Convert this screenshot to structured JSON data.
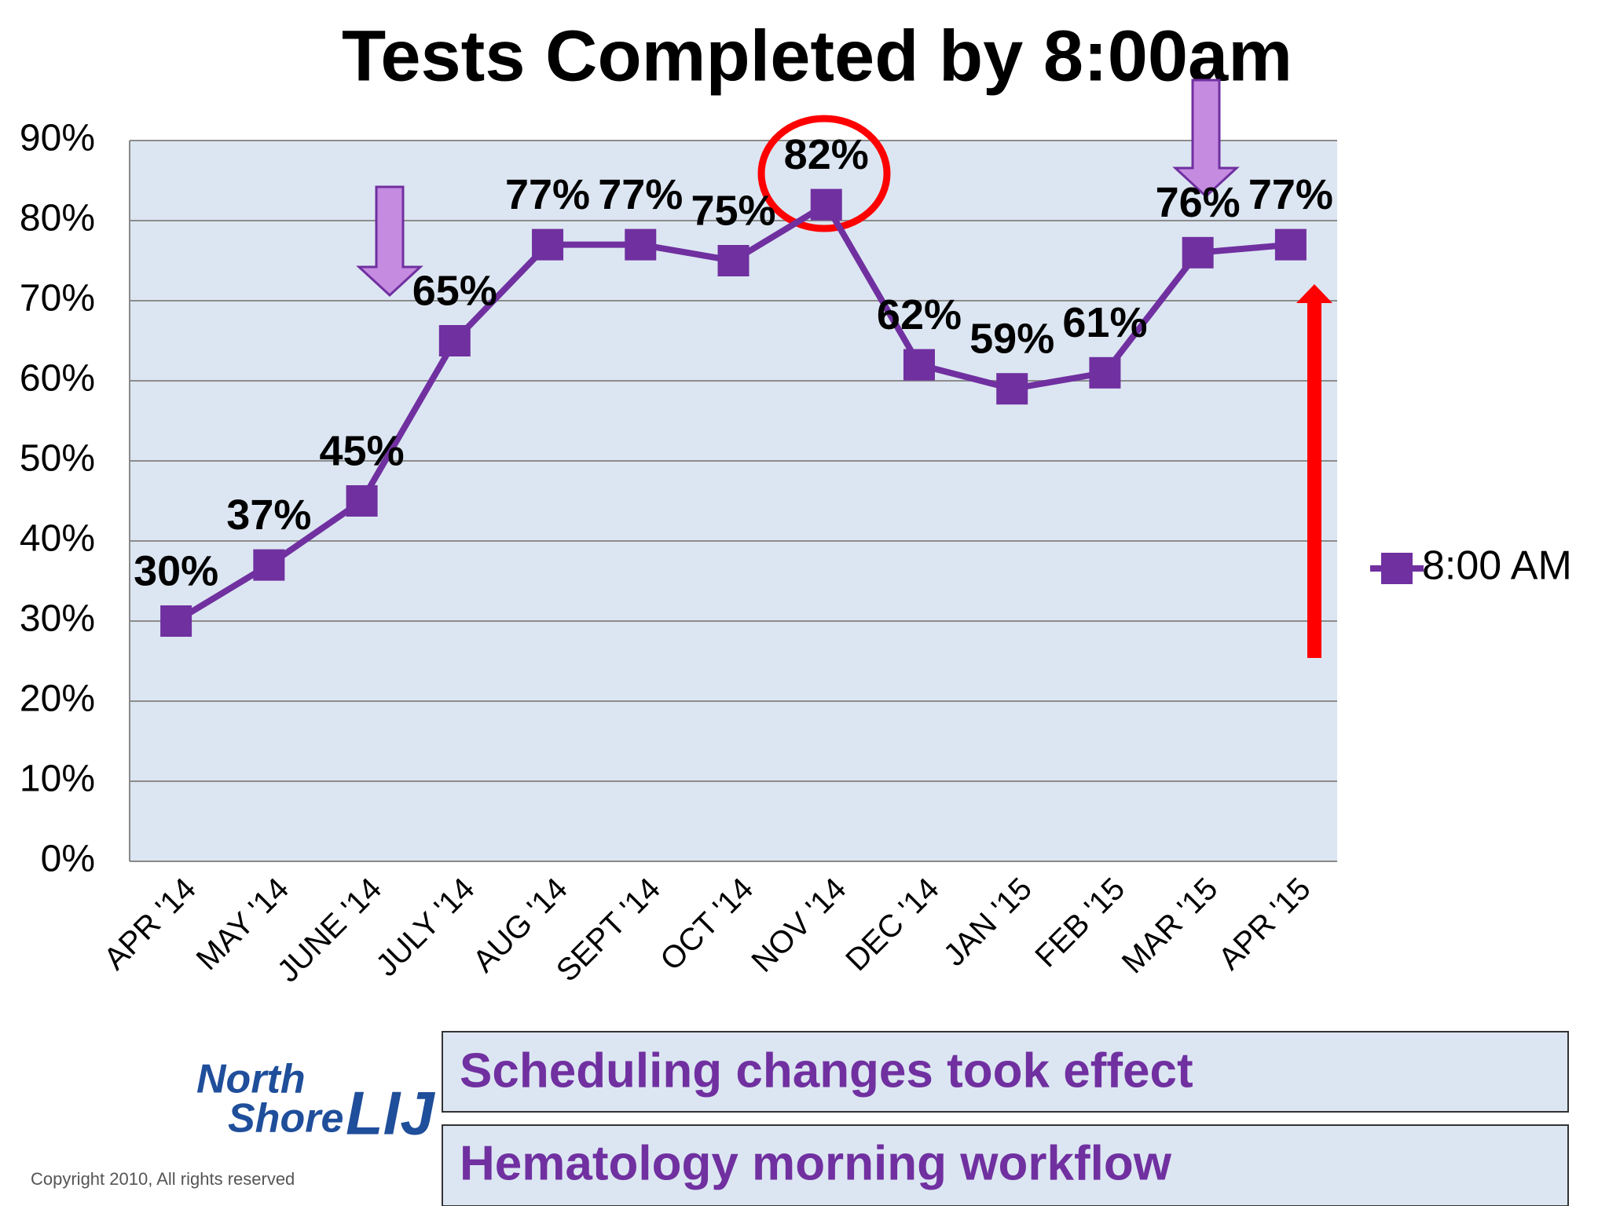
{
  "chart_data": {
    "type": "line",
    "title": "Tests Completed by 8:00am",
    "categories": [
      "APR '14",
      "MAY '14",
      "JUNE '14",
      "JULY '14",
      "AUG '14",
      "SEPT '14",
      "OCT '14",
      "NOV '14",
      "DEC '14",
      "JAN '15",
      "FEB '15",
      "MAR '15",
      "APR '15"
    ],
    "series": [
      {
        "name": "8:00 AM",
        "color": "#7030a0",
        "values": [
          30,
          37,
          45,
          65,
          77,
          77,
          75,
          82,
          62,
          59,
          61,
          76,
          77
        ],
        "value_labels": [
          "30%",
          "37%",
          "45%",
          "65%",
          "77%",
          "77%",
          "75%",
          "82%",
          "62%",
          "59%",
          "61%",
          "76%",
          "77%"
        ]
      }
    ],
    "ylim": [
      0,
      90
    ],
    "yticks": [
      {
        "value": 0,
        "label": "0%"
      },
      {
        "value": 10,
        "label": "10%"
      },
      {
        "value": 20,
        "label": "20%"
      },
      {
        "value": 30,
        "label": "30%"
      },
      {
        "value": 40,
        "label": "40%"
      },
      {
        "value": 50,
        "label": "50%"
      },
      {
        "value": 60,
        "label": "60%"
      },
      {
        "value": 70,
        "label": "70%"
      },
      {
        "value": 80,
        "label": "80%"
      },
      {
        "value": 90,
        "label": "90%"
      }
    ],
    "grid": true,
    "legend": "right"
  },
  "footer": {
    "box1": "Scheduling changes took effect",
    "box2": "Hematology morning workflow",
    "logo_top": "North",
    "logo_middle": "Shore",
    "logo_right": "LIJ",
    "copyright": "Copyright 2010, All rights reserved"
  }
}
